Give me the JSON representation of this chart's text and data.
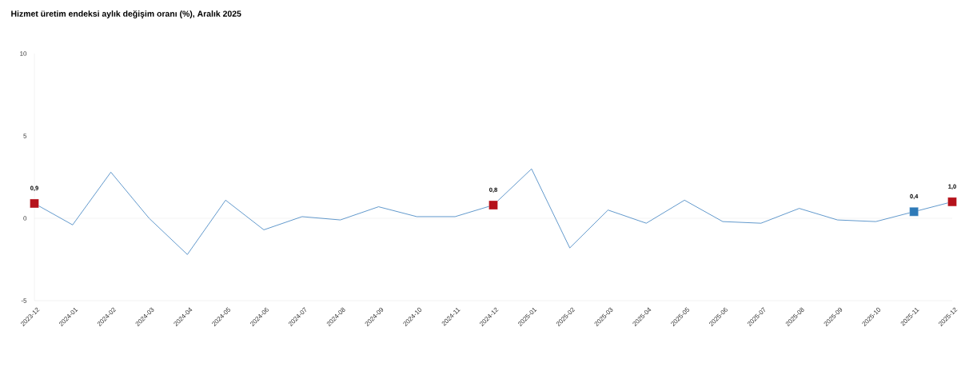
{
  "chart_data": {
    "type": "line",
    "title": "Hizmet üretim endeksi aylık değişim oranı (%), Aralık 2025",
    "categories": [
      "2023-12",
      "2024-01",
      "2024-02",
      "2024-03",
      "2024-04",
      "2024-05",
      "2024-06",
      "2024-07",
      "2024-08",
      "2024-09",
      "2024-10",
      "2024-11",
      "2024-12",
      "2025-01",
      "2025-02",
      "2025-03",
      "2025-04",
      "2025-05",
      "2025-06",
      "2025-07",
      "2025-08",
      "2025-09",
      "2025-10",
      "2025-11",
      "2025-12"
    ],
    "series": [
      {
        "color": "#3a7fbf",
        "line_style": "solid",
        "values": [
          0.9,
          -0.4,
          2.8,
          0.0,
          -2.2,
          1.1,
          -0.7,
          0.1,
          -0.1,
          0.7,
          0.1,
          0.1,
          0.8,
          3.0,
          -1.8,
          0.5,
          -0.3,
          1.1,
          -0.2,
          -0.3,
          0.6,
          -0.1,
          -0.2,
          0.4,
          1.0
        ],
        "colors": [
          "#b5121b",
          null,
          null,
          null,
          null,
          null,
          null,
          null,
          null,
          null,
          null,
          null,
          "#b5121b",
          null,
          null,
          null,
          null,
          null,
          null,
          null,
          null,
          null,
          null,
          "#2e7ab8",
          "#b5121b"
        ],
        "value_labels": [
          "0,9",
          null,
          null,
          null,
          null,
          null,
          null,
          null,
          null,
          null,
          null,
          null,
          "0,8",
          null,
          null,
          null,
          null,
          null,
          null,
          null,
          null,
          null,
          null,
          "0,4",
          "1,0"
        ]
      }
    ],
    "ylim": [
      -5,
      10
    ],
    "yticks": [
      -5,
      0,
      5,
      10
    ],
    "ref_lines": [
      {
        "axis": "y",
        "value": 0,
        "color": "#dddddd"
      }
    ]
  }
}
